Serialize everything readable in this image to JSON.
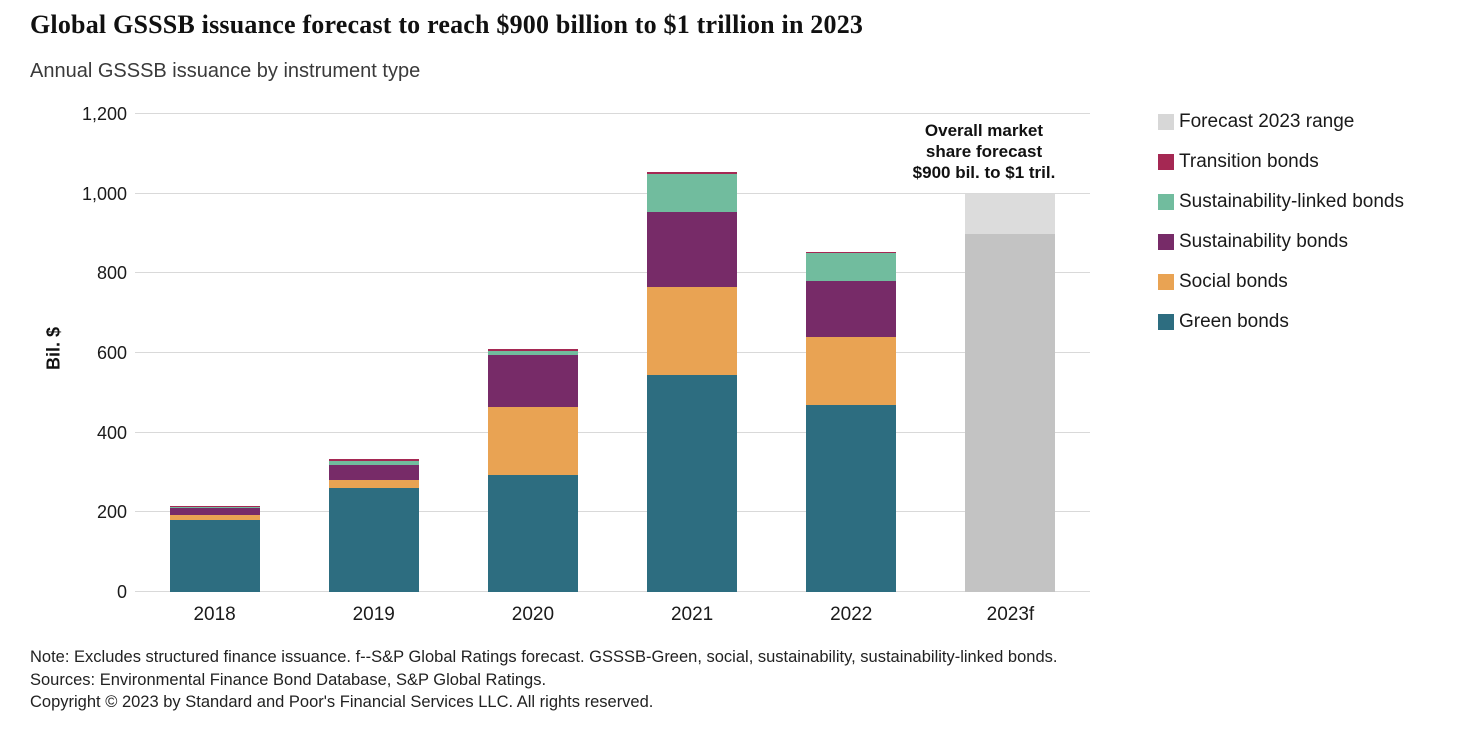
{
  "header": {
    "title": "Global GSSSB issuance forecast to reach $900 billion to $1 trillion in 2023",
    "subtitle": "Annual GSSSB issuance by instrument type"
  },
  "chart_data": {
    "type": "bar",
    "stacked": true,
    "title": "Global GSSSB issuance forecast to reach $900 billion to $1 trillion in 2023",
    "xlabel": "",
    "ylabel": "Bil. $",
    "ylim": [
      0,
      1200
    ],
    "ytick_interval": 200,
    "grid": "horizontal",
    "legend_position": "right",
    "categories": [
      "2018",
      "2019",
      "2020",
      "2021",
      "2022",
      "2023f"
    ],
    "series": [
      {
        "name": "Green bonds",
        "color": "#2d6d80",
        "values": [
          180,
          260,
          295,
          545,
          470,
          0
        ]
      },
      {
        "name": "Social bonds",
        "color": "#e9a353",
        "values": [
          13,
          20,
          170,
          220,
          170,
          0
        ]
      },
      {
        "name": "Sustainability bonds",
        "color": "#772b68",
        "values": [
          18,
          40,
          130,
          190,
          140,
          0
        ]
      },
      {
        "name": "Sustainability-linked bonds",
        "color": "#71bc9e",
        "values": [
          2,
          10,
          10,
          95,
          70,
          0
        ]
      },
      {
        "name": "Transition bonds",
        "color": "#a52853",
        "values": [
          2,
          3,
          5,
          5,
          3,
          0
        ]
      }
    ],
    "forecast": {
      "category": "2023f",
      "solid_value": 900,
      "range_high": 1000,
      "solid_color": "#c3c3c3",
      "range_color": "#dcdcdc"
    },
    "annotation": {
      "lines": [
        "Overall market",
        "share forecast",
        "$900 bil. to $1 tril."
      ]
    },
    "legend": [
      {
        "label": "Forecast 2023 range",
        "color": "#d7d7d7"
      },
      {
        "label": "Transition bonds",
        "color": "#a52853"
      },
      {
        "label": "Sustainability-linked bonds",
        "color": "#71bc9e"
      },
      {
        "label": "Sustainability bonds",
        "color": "#772b68"
      },
      {
        "label": "Social bonds",
        "color": "#e9a353"
      },
      {
        "label": "Green bonds",
        "color": "#2d6d80"
      }
    ]
  },
  "footer": {
    "note": "Note: Excludes structured finance issuance. f--S&P Global Ratings forecast. GSSSB-Green, social, sustainability, sustainability-linked bonds.",
    "sources": "Sources: Environmental Finance Bond Database, S&P Global Ratings.",
    "copyright": "Copyright © 2023 by Standard and Poor's Financial Services LLC. All rights reserved."
  }
}
